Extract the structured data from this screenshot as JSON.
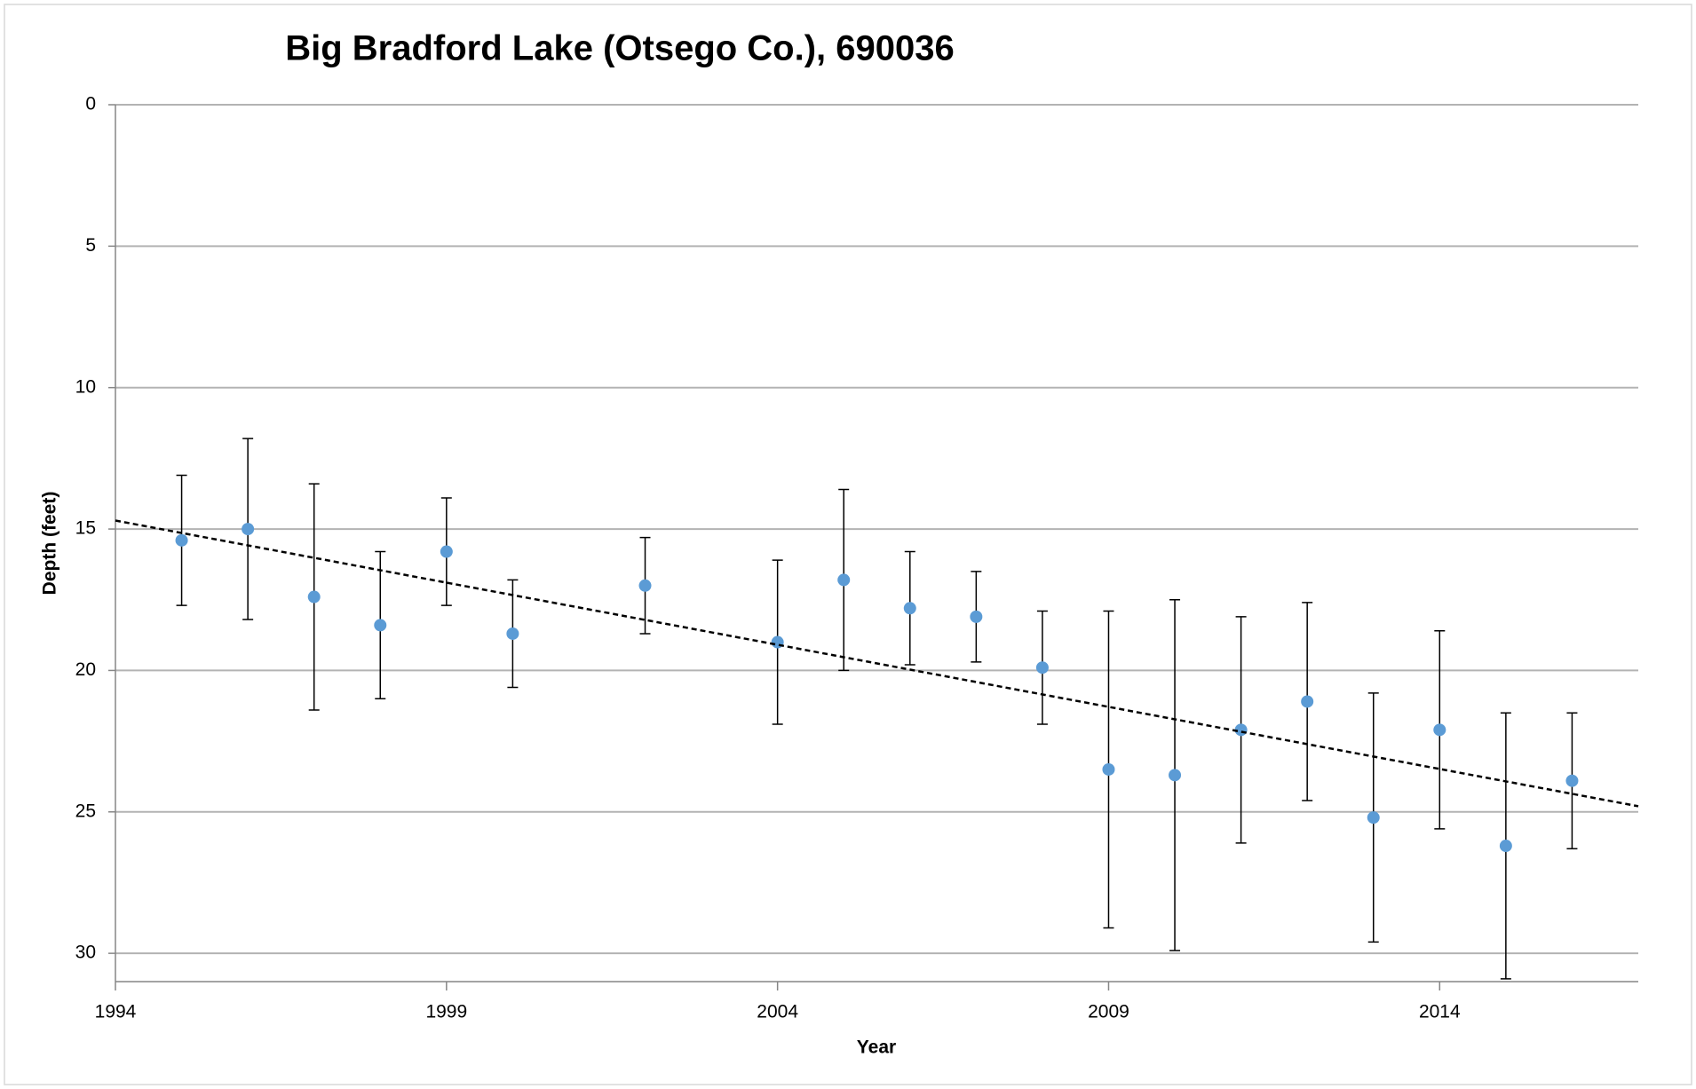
{
  "chart_data": {
    "type": "scatter",
    "title": "Big Bradford Lake (Otsego Co.), 690036",
    "x_label": "Year",
    "y_label": "Depth (feet)",
    "xlim": [
      1994,
      2017
    ],
    "xticks": [
      1994,
      1999,
      2004,
      2009,
      2014
    ],
    "ylim": [
      0,
      31
    ],
    "yticks": [
      0,
      5,
      10,
      15,
      20,
      25,
      30
    ],
    "y_inverted": true,
    "grid": true,
    "series": [
      {
        "color": "#5b9bd5",
        "x": [
          1995,
          1996,
          1997,
          1998,
          1999,
          2000,
          2002,
          2004,
          2005,
          2006,
          2007,
          2008,
          2009,
          2010,
          2011,
          2012,
          2013,
          2014,
          2015,
          2016
        ],
        "values": [
          15.4,
          15.0,
          17.4,
          18.4,
          15.8,
          18.7,
          17.0,
          19.0,
          16.8,
          17.8,
          18.1,
          19.9,
          23.5,
          23.7,
          22.1,
          21.1,
          25.2,
          22.1,
          26.2,
          23.9
        ],
        "errors": [
          2.3,
          3.2,
          4.0,
          2.6,
          1.9,
          1.9,
          1.7,
          2.9,
          3.2,
          2.0,
          1.6,
          2.0,
          5.6,
          6.2,
          4.0,
          3.5,
          4.4,
          3.5,
          4.7,
          2.4
        ]
      }
    ],
    "trendline": {
      "color": "#000000",
      "x": [
        1994,
        2017
      ],
      "values": [
        14.7,
        24.8
      ]
    }
  }
}
